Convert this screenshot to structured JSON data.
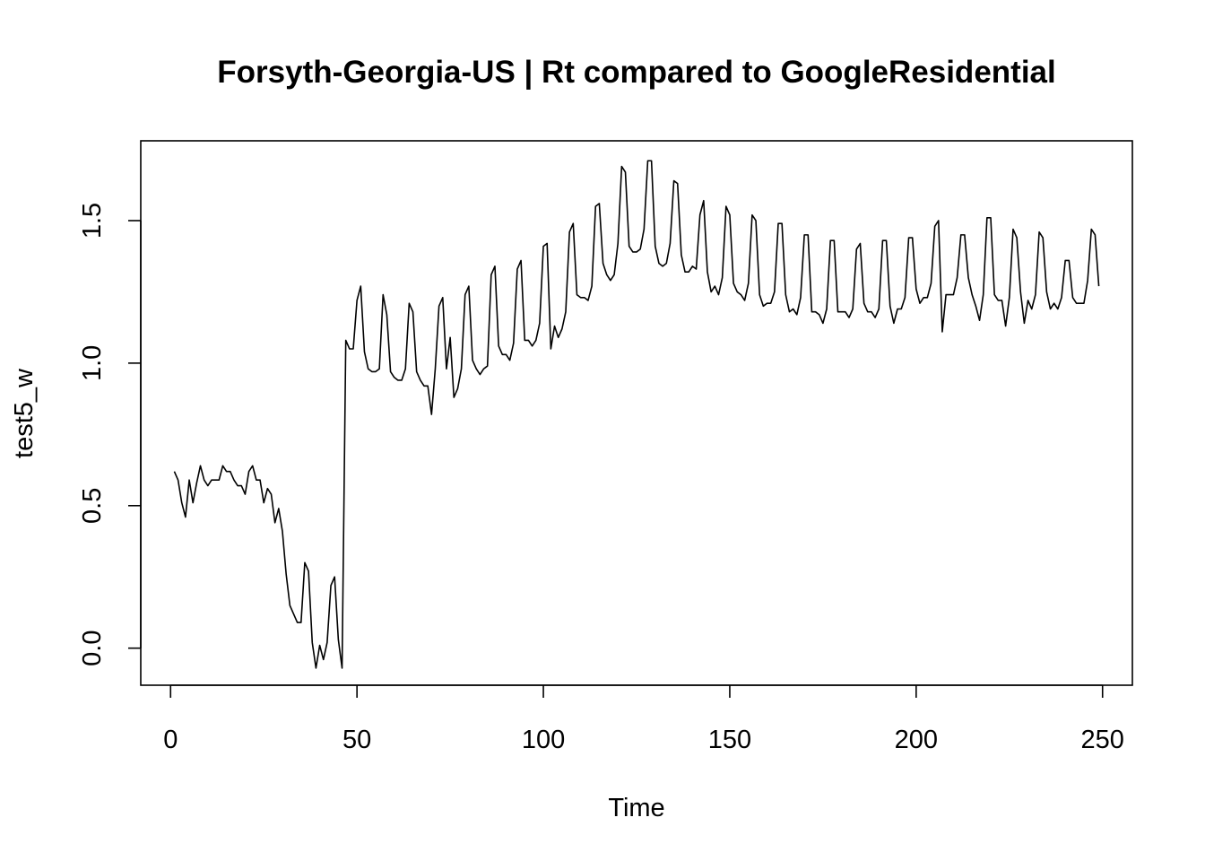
{
  "chart_data": {
    "type": "line",
    "title": "Forsyth-Georgia-US | Rt compared to GoogleResidential",
    "xlabel": "Time",
    "ylabel": "test5_w",
    "xlim": [
      -8,
      258
    ],
    "ylim": [
      -0.13,
      1.78
    ],
    "x_ticks": [
      0,
      50,
      100,
      150,
      200,
      250
    ],
    "x_tick_labels": [
      "0",
      "50",
      "100",
      "150",
      "200",
      "250"
    ],
    "y_ticks": [
      0.0,
      0.5,
      1.0,
      1.5
    ],
    "y_tick_labels": [
      "0.0",
      "0.5",
      "1.0",
      "1.5"
    ],
    "grid": false,
    "legend": "none",
    "series": [
      {
        "x_start": 1,
        "x_step": 1,
        "values": [
          0.62,
          0.59,
          0.51,
          0.46,
          0.59,
          0.51,
          0.58,
          0.64,
          0.59,
          0.57,
          0.59,
          0.59,
          0.59,
          0.64,
          0.62,
          0.62,
          0.59,
          0.57,
          0.57,
          0.54,
          0.62,
          0.64,
          0.59,
          0.59,
          0.51,
          0.56,
          0.54,
          0.44,
          0.49,
          0.41,
          0.26,
          0.15,
          0.12,
          0.09,
          0.09,
          0.3,
          0.27,
          0.02,
          -0.07,
          0.01,
          -0.04,
          0.02,
          0.22,
          0.25,
          0.03,
          -0.07,
          1.08,
          1.05,
          1.05,
          1.22,
          1.27,
          1.04,
          0.98,
          0.97,
          0.97,
          0.98,
          1.24,
          1.17,
          0.97,
          0.95,
          0.94,
          0.94,
          0.98,
          1.21,
          1.18,
          0.97,
          0.94,
          0.92,
          0.92,
          0.82,
          0.98,
          1.2,
          1.23,
          0.98,
          1.09,
          0.88,
          0.91,
          0.98,
          1.24,
          1.27,
          1.01,
          0.98,
          0.96,
          0.98,
          0.99,
          1.31,
          1.34,
          1.06,
          1.03,
          1.03,
          1.01,
          1.07,
          1.33,
          1.36,
          1.08,
          1.08,
          1.06,
          1.08,
          1.14,
          1.41,
          1.42,
          1.05,
          1.13,
          1.09,
          1.12,
          1.18,
          1.46,
          1.49,
          1.24,
          1.23,
          1.23,
          1.22,
          1.27,
          1.55,
          1.56,
          1.35,
          1.31,
          1.29,
          1.31,
          1.42,
          1.69,
          1.67,
          1.41,
          1.39,
          1.39,
          1.4,
          1.47,
          1.71,
          1.71,
          1.41,
          1.35,
          1.34,
          1.35,
          1.42,
          1.64,
          1.63,
          1.38,
          1.32,
          1.32,
          1.34,
          1.33,
          1.52,
          1.57,
          1.32,
          1.25,
          1.27,
          1.24,
          1.3,
          1.55,
          1.52,
          1.28,
          1.25,
          1.24,
          1.22,
          1.28,
          1.52,
          1.5,
          1.24,
          1.2,
          1.21,
          1.21,
          1.25,
          1.49,
          1.49,
          1.24,
          1.18,
          1.19,
          1.17,
          1.23,
          1.45,
          1.45,
          1.18,
          1.18,
          1.17,
          1.14,
          1.19,
          1.43,
          1.43,
          1.18,
          1.18,
          1.18,
          1.16,
          1.19,
          1.4,
          1.42,
          1.21,
          1.18,
          1.18,
          1.16,
          1.19,
          1.43,
          1.43,
          1.2,
          1.14,
          1.19,
          1.19,
          1.23,
          1.44,
          1.44,
          1.26,
          1.21,
          1.23,
          1.23,
          1.28,
          1.48,
          1.5,
          1.11,
          1.24,
          1.24,
          1.24,
          1.3,
          1.45,
          1.45,
          1.3,
          1.24,
          1.2,
          1.15,
          1.24,
          1.51,
          1.51,
          1.24,
          1.22,
          1.22,
          1.13,
          1.23,
          1.47,
          1.44,
          1.25,
          1.14,
          1.22,
          1.19,
          1.24,
          1.46,
          1.44,
          1.25,
          1.19,
          1.21,
          1.19,
          1.23,
          1.36,
          1.36,
          1.23,
          1.21,
          1.21,
          1.21,
          1.29,
          1.47,
          1.45,
          1.27
        ]
      }
    ]
  }
}
